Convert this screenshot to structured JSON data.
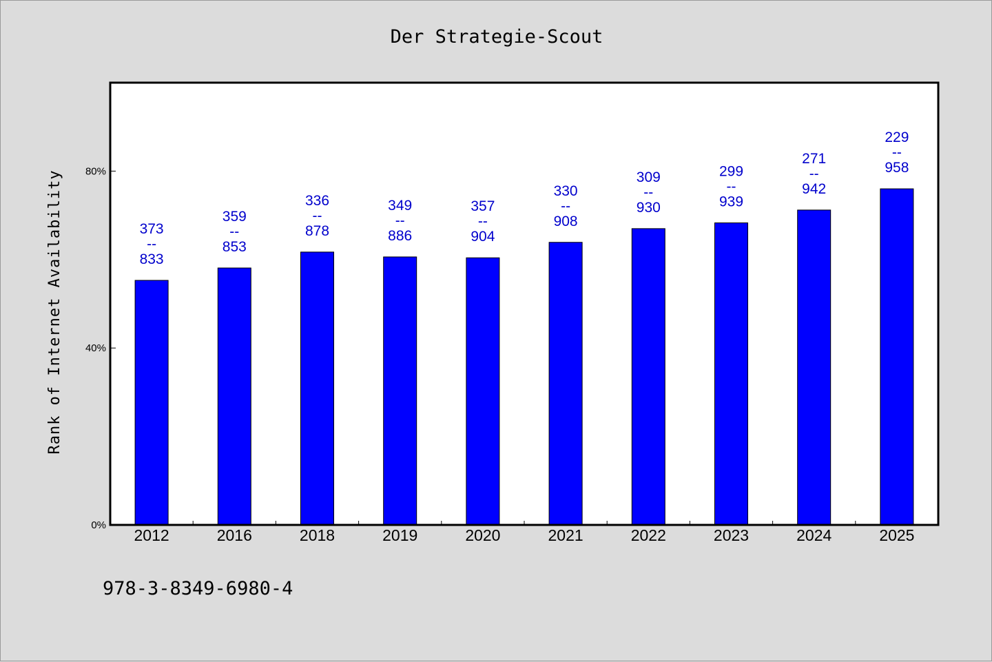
{
  "chart_data": {
    "type": "bar",
    "title": "Der Strategie-Scout",
    "ylabel": "Rank of Internet Availability",
    "xlabel": "",
    "categories": [
      "2012",
      "2016",
      "2018",
      "2019",
      "2020",
      "2021",
      "2022",
      "2023",
      "2024",
      "2025"
    ],
    "values": [
      0.553,
      0.581,
      0.617,
      0.606,
      0.604,
      0.639,
      0.67,
      0.683,
      0.712,
      0.76
    ],
    "bar_labels": [
      {
        "top": "373",
        "sep": "--",
        "bottom": "833"
      },
      {
        "top": "359",
        "sep": "--",
        "bottom": "853"
      },
      {
        "top": "336",
        "sep": "--",
        "bottom": "878"
      },
      {
        "top": "349",
        "sep": "--",
        "bottom": "886"
      },
      {
        "top": "357",
        "sep": "--",
        "bottom": "904"
      },
      {
        "top": "330",
        "sep": "--",
        "bottom": "908"
      },
      {
        "top": "309",
        "sep": "--",
        "bottom": "930"
      },
      {
        "top": "299",
        "sep": "--",
        "bottom": "939"
      },
      {
        "top": "271",
        "sep": "--",
        "bottom": "942"
      },
      {
        "top": "229",
        "sep": "--",
        "bottom": "958"
      }
    ],
    "ylim": [
      0,
      1.0
    ],
    "yticks": [
      0,
      0.4,
      0.8
    ],
    "ytick_labels": [
      "0%",
      "40%",
      "80%"
    ],
    "grid": false,
    "bar_color": "#0000ff",
    "label_color": "#0000cc",
    "plot_background": "#ffffff",
    "figure_background": "#dcdcdc"
  },
  "footnote": "978-3-8349-6980-4"
}
